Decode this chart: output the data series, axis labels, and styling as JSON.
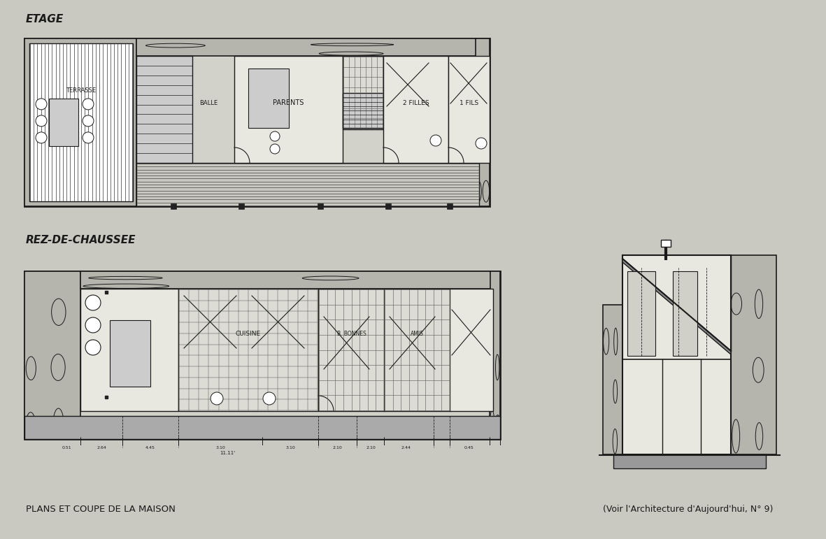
{
  "bg_color": "#c9c9c1",
  "title_bottom_left": "PLANS ET COUPE DE LA MAISON",
  "title_bottom_right": "(Voir l'Architecture d'Aujourd'hui, N° 9)",
  "label_etage": "ETAGE",
  "label_rez": "REZ-DE-CHAUSSEE",
  "label_terrasse": "TERRASSE",
  "label_balle": "BALLE",
  "label_parents": "PARENTS",
  "label_2filles": "2 FILLES",
  "label_1fils": "1 FILS",
  "label_cuisine": "CUISINE",
  "label_bonnes": "B. BONNES",
  "label_amis": "AMIS",
  "line_color": "#1a1a1a",
  "stone_fill": "#b5b5ad",
  "wall_fill": "#d2d2ca",
  "room_fill": "#e8e8e0",
  "hatch_fill": "#c8c8c0",
  "grid_fill": "#dcdcd4"
}
